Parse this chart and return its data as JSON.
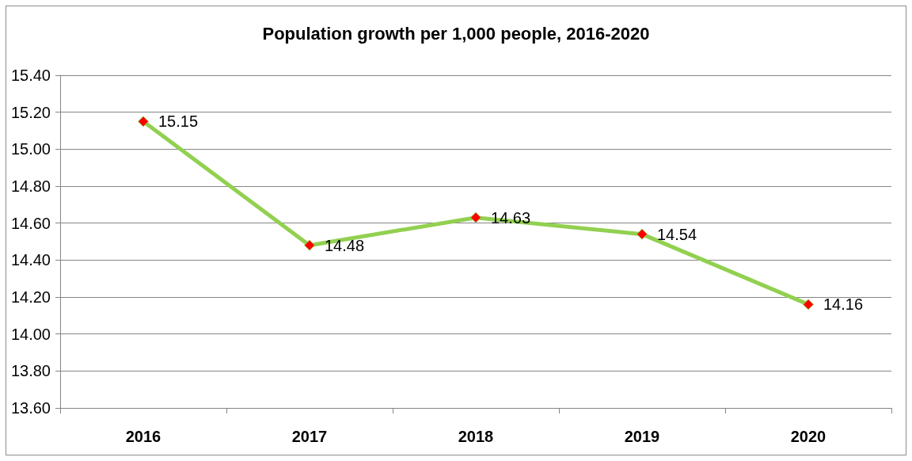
{
  "chart_data": {
    "type": "line",
    "title": "Population growth per 1,000 people, 2016-2020",
    "categories": [
      "2016",
      "2017",
      "2018",
      "2019",
      "2020"
    ],
    "series": [
      {
        "color": "#92d050",
        "values": [
          15.15,
          14.48,
          14.63,
          14.54,
          14.16
        ]
      }
    ],
    "ylim": [
      13.6,
      15.4
    ],
    "yticks": [
      {
        "value": 13.6,
        "label": "13.60"
      },
      {
        "value": 13.8,
        "label": "13.80"
      },
      {
        "value": 14.0,
        "label": "14.00"
      },
      {
        "value": 14.2,
        "label": "14.20"
      },
      {
        "value": 14.4,
        "label": "14.40"
      },
      {
        "value": 14.6,
        "label": "14.60"
      },
      {
        "value": 14.8,
        "label": "14.80"
      },
      {
        "value": 15.0,
        "label": "15.00"
      },
      {
        "value": 15.2,
        "label": "15.20"
      },
      {
        "value": 15.4,
        "label": "15.40"
      }
    ],
    "grid": "y",
    "marker": "diamond",
    "line_style": "solid",
    "data_labels": true
  }
}
